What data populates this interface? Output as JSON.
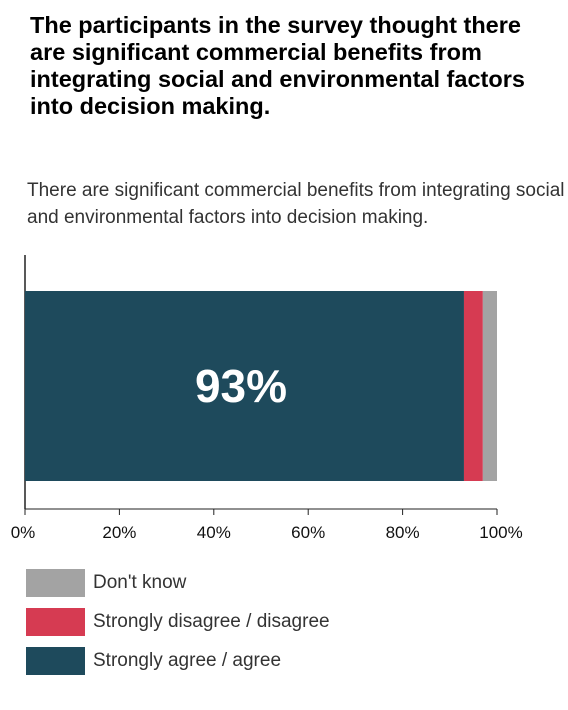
{
  "headline": "The participants in the survey thought there are significant commercial benefits from integrating social and environmental factors into decision making.",
  "chart_data": {
    "type": "bar",
    "orientation": "horizontal",
    "stacked": true,
    "title": "There are significant commercial benefits from integrating social and environmental factors into decision making.",
    "xlim": [
      0,
      100
    ],
    "xticks": [
      "0%",
      "20%",
      "40%",
      "60%",
      "80%",
      "100%"
    ],
    "series": [
      {
        "name": "Strongly agree / agree",
        "value": 93,
        "color": "#1e4a5c",
        "label": "93%"
      },
      {
        "name": "Strongly disagree / disagree",
        "value": 4,
        "color": "#d63b52"
      },
      {
        "name": "Don't know",
        "value": 3,
        "color": "#a3a3a3"
      }
    ],
    "legend": {
      "placement": "bottom",
      "order": [
        "Don't know",
        "Strongly disagree / disagree",
        "Strongly agree / agree"
      ]
    }
  }
}
